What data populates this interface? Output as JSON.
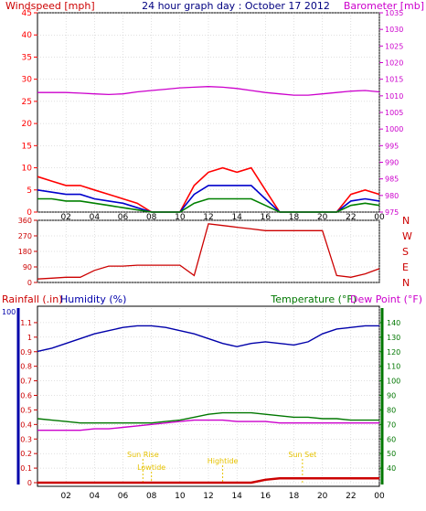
{
  "colors": {
    "wind_avg": "#008000",
    "wind_gust": "#ff0000",
    "wind_mean": "#0000cc",
    "barometer": "#cc00cc",
    "direction": "#cc0000",
    "rain": "#cc0000",
    "humidity": "#0000aa",
    "temperature": "#007700",
    "dewpoint": "#cc00cc",
    "sun_markers": "#e6c200",
    "axis": "#000000",
    "grid": "#c0c0c0"
  },
  "top": {
    "title": "24 hour graph day : October 17 2012",
    "left_label": "Windspeed [mph]",
    "right_label": "Barometer [mb]",
    "left_ticks": [
      "0",
      "5",
      "10",
      "15",
      "20",
      "25",
      "30",
      "35",
      "40",
      "45"
    ],
    "right_ticks": [
      "975",
      "980",
      "985",
      "990",
      "995",
      "1000",
      "1005",
      "1010",
      "1015",
      "1020",
      "1025",
      "1030",
      "1035"
    ]
  },
  "direction": {
    "left_ticks": [
      "0",
      "90",
      "180",
      "270",
      "360"
    ],
    "compass": [
      "N",
      "W",
      "S",
      "E",
      "N"
    ]
  },
  "bottom": {
    "rain_label": "Rainfall (.in)",
    "humidity_label": "Humidity (%)",
    "temp_label": "Temperature (°F)",
    "dew_label": "Dew Point (°F)",
    "left_ticks": [
      "0",
      "0.1",
      "0.2",
      "0.3",
      "0.4",
      "0.5",
      "0.6",
      "0.7",
      "0.8",
      "0.9",
      "1",
      "1.1"
    ],
    "left_ticks_high": "100",
    "right_ticks": [
      "40",
      "50",
      "60",
      "70",
      "80",
      "90",
      "100",
      "110",
      "120",
      "130",
      "140"
    ],
    "events": [
      "Sun Rise",
      "Lowtide",
      "Hightide",
      "Sun Set"
    ]
  },
  "x_ticks": [
    "02",
    "04",
    "06",
    "08",
    "10",
    "12",
    "14",
    "16",
    "18",
    "20",
    "22",
    "00"
  ],
  "chart_data": [
    {
      "type": "line",
      "title": "24 hour graph day : October 17 2012",
      "x_label": "hour",
      "x": [
        0,
        1,
        2,
        3,
        4,
        5,
        6,
        7,
        8,
        9,
        10,
        11,
        12,
        13,
        14,
        15,
        16,
        17,
        18,
        19,
        20,
        21,
        22,
        23,
        24
      ],
      "series": [
        {
          "name": "Barometer [mb]",
          "axis": "right",
          "values": [
            1011,
            1011,
            1011,
            1010.8,
            1010.6,
            1010.4,
            1010.6,
            1011.2,
            1011.6,
            1012,
            1012.4,
            1012.6,
            1012.8,
            1012.6,
            1012.2,
            1011.6,
            1011,
            1010.6,
            1010.2,
            1010.2,
            1010.6,
            1011,
            1011.4,
            1011.6,
            1011.2
          ]
        },
        {
          "name": "Windspeed [mph] gust",
          "axis": "left",
          "values": [
            8,
            7,
            6,
            6,
            5,
            4,
            3,
            2,
            0,
            0,
            0,
            6,
            9,
            10,
            9,
            10,
            5,
            0,
            0,
            0,
            0,
            0,
            4,
            5,
            4
          ]
        },
        {
          "name": "Windspeed [mph] mean",
          "axis": "left",
          "values": [
            5,
            4.5,
            4,
            4,
            3,
            2.5,
            2,
            1,
            0,
            0,
            0,
            4,
            6,
            6,
            6,
            6,
            3,
            0,
            0,
            0,
            0,
            0,
            2.5,
            3,
            2.5
          ]
        },
        {
          "name": "Windspeed [mph] avg",
          "axis": "left",
          "values": [
            3,
            3,
            2.5,
            2.5,
            2,
            1.5,
            1,
            0.5,
            0,
            0,
            0,
            2,
            3,
            3,
            3,
            3,
            1.5,
            0,
            0,
            0,
            0,
            0,
            1.5,
            2,
            1.5
          ]
        }
      ],
      "left_ylim": [
        0,
        45
      ],
      "right_ylim": [
        975,
        1035
      ]
    },
    {
      "type": "line",
      "x": [
        0,
        1,
        2,
        3,
        4,
        5,
        6,
        7,
        8,
        9,
        10,
        11,
        12,
        13,
        14,
        15,
        16,
        17,
        18,
        19,
        20,
        21,
        22,
        23,
        24
      ],
      "series": [
        {
          "name": "Wind direction",
          "values": [
            20,
            25,
            30,
            30,
            70,
            95,
            95,
            100,
            100,
            100,
            100,
            40,
            340,
            330,
            320,
            310,
            300,
            300,
            300,
            300,
            300,
            40,
            30,
            50,
            80
          ]
        }
      ],
      "ylim": [
        0,
        360
      ]
    },
    {
      "type": "line",
      "x": [
        0,
        1,
        2,
        3,
        4,
        5,
        6,
        7,
        8,
        9,
        10,
        11,
        12,
        13,
        14,
        15,
        16,
        17,
        18,
        19,
        20,
        21,
        22,
        23,
        24
      ],
      "series": [
        {
          "name": "Humidity (%)",
          "axis": "left_pct",
          "values": [
            82,
            84,
            87,
            90,
            93,
            95,
            97,
            98,
            98,
            97,
            95,
            93,
            90,
            87,
            85,
            87,
            88,
            87,
            86,
            88,
            93,
            96,
            97,
            98,
            98
          ]
        },
        {
          "name": "Temperature (°F)",
          "axis": "right",
          "values": [
            74,
            73,
            72,
            71,
            71,
            71,
            71,
            71,
            71,
            72,
            73,
            75,
            77,
            78,
            78,
            78,
            77,
            76,
            75,
            75,
            74,
            74,
            73,
            73,
            73
          ]
        },
        {
          "name": "Dew Point (°F)",
          "axis": "right",
          "values": [
            66,
            66,
            66,
            66,
            67,
            67,
            68,
            69,
            70,
            71,
            72,
            73,
            73,
            73,
            72,
            72,
            72,
            71,
            71,
            71,
            71,
            71,
            71,
            71,
            71
          ]
        },
        {
          "name": "Rainfall (.in)",
          "axis": "left",
          "values": [
            0,
            0,
            0,
            0,
            0,
            0,
            0,
            0,
            0,
            0,
            0,
            0,
            0,
            0,
            0,
            0,
            0.02,
            0.03,
            0.03,
            0.03,
            0.03,
            0.03,
            0.03,
            0.03,
            0.03
          ]
        }
      ],
      "left_ylim": [
        0,
        1.2
      ],
      "right_ylim": [
        30,
        150
      ],
      "events": [
        {
          "label": "Sun Rise",
          "hour": 7.4
        },
        {
          "label": "Lowtide",
          "hour": 8.0
        },
        {
          "label": "Hightide",
          "hour": 13.0
        },
        {
          "label": "Sun Set",
          "hour": 18.6
        }
      ]
    }
  ]
}
